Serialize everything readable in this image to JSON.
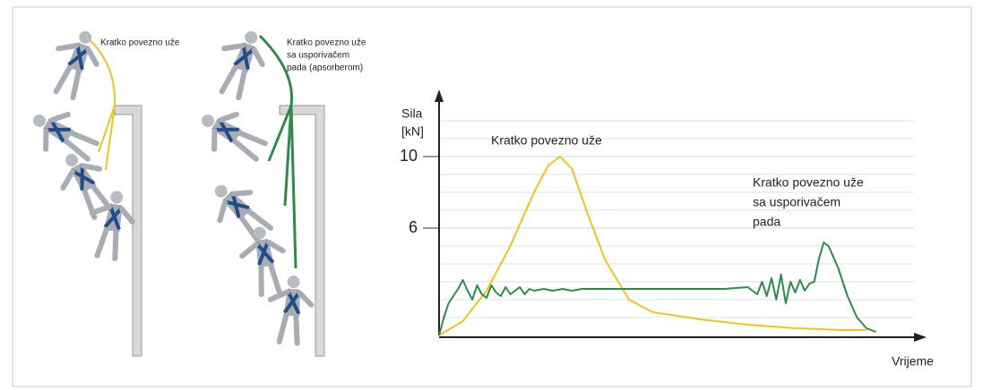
{
  "illustration": {
    "labels": [
      [
        "Kratko povezno uže"
      ],
      [
        "Kratko povezno uže",
        "sa usporivačem",
        "pada (apsorberom)"
      ]
    ]
  },
  "chart_data": {
    "type": "line",
    "y_label": [
      "Sila",
      "[kN]"
    ],
    "x_label": "Vrijeme",
    "xlim": [
      0,
      100
    ],
    "ylim": [
      0,
      13
    ],
    "yticks": [
      6,
      10
    ],
    "minor_yticks": [
      1,
      2,
      3,
      4,
      5,
      7,
      8,
      9,
      11,
      12
    ],
    "grid": true,
    "series": [
      {
        "color": "#f0c419",
        "x": [
          0,
          5,
          10,
          15,
          20,
          23,
          25.5,
          28,
          31,
          35,
          40,
          45,
          55,
          65,
          75,
          85,
          90
        ],
        "values": [
          0,
          0.8,
          2.5,
          5,
          8,
          9.5,
          10,
          9.3,
          7,
          4.2,
          2,
          1.3,
          0.9,
          0.6,
          0.4,
          0.3,
          0.3
        ]
      },
      {
        "color": "#2e8b4a",
        "x": [
          0,
          1,
          2,
          3,
          4,
          5,
          6,
          7,
          8,
          9,
          10,
          11,
          12,
          13,
          14,
          15,
          16,
          17,
          18,
          19,
          20,
          22,
          24,
          26,
          28,
          30,
          35,
          40,
          45,
          50,
          55,
          60,
          65,
          67,
          68,
          69,
          70,
          71,
          72,
          73,
          74,
          75,
          76,
          77,
          78,
          79,
          80,
          81,
          82,
          84,
          86,
          88,
          90,
          92
        ],
        "values": [
          0,
          1,
          1.8,
          2.2,
          2.6,
          3.1,
          2.5,
          2.0,
          2.8,
          2.3,
          2.1,
          2.8,
          2.4,
          2.2,
          2.7,
          2.3,
          2.5,
          2.7,
          2.3,
          2.6,
          2.5,
          2.6,
          2.5,
          2.6,
          2.5,
          2.6,
          2.6,
          2.6,
          2.6,
          2.6,
          2.6,
          2.6,
          2.7,
          2.3,
          3.0,
          2.2,
          3.2,
          2.0,
          3.4,
          1.8,
          3.0,
          2.4,
          3.1,
          2.5,
          2.9,
          3.0,
          4.3,
          5.2,
          5.0,
          3.8,
          2.2,
          1.0,
          0.4,
          0.2
        ]
      }
    ],
    "annotations": [
      [
        "Kratko povezno uže"
      ],
      [
        "Kratko povezno uže",
        "sa usporivačem",
        "pada"
      ]
    ]
  }
}
